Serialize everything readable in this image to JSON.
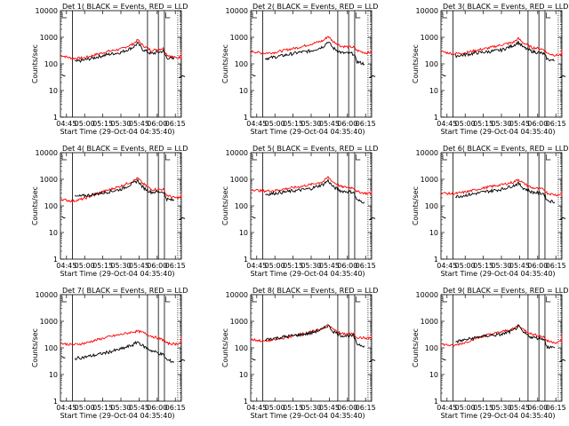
{
  "chart_data": {
    "type": "line",
    "panel_labels": [
      "Det 1( BLACK = Events, RED = LLD",
      "Det 2( BLACK = Events, RED = LLD",
      "Det 3( BLACK = Events, RED = LLD",
      "Det 4( BLACK = Events, RED = LLD",
      "Det 5( BLACK = Events, RED = LLD",
      "Det 6( BLACK = Events, RED = LLD",
      "Det 7( BLACK = Events, RED = LLD",
      "Det 8( BLACK = Events, RED = LLD",
      "Det 9( BLACK = Events, RED = LLD"
    ],
    "xlabel": "Start Time (29-Oct-04 04:35:40)",
    "ylabel": "Counts/sec",
    "x_ticks": [
      "04:45",
      "05:00",
      "05:15",
      "05:30",
      "05:45",
      "06:00",
      "06:15"
    ],
    "y_ticks": [
      "1",
      "10",
      "100",
      "1000",
      "10000"
    ],
    "y_scale": "log",
    "ylim": [
      1,
      10000
    ],
    "series_colors": {
      "events": "#000000",
      "lld": "#ff0000"
    },
    "panels": [
      {
        "lld": [
          [
            0,
            210
          ],
          [
            10,
            160
          ],
          [
            20,
            170
          ],
          [
            30,
            230
          ],
          [
            40,
            300
          ],
          [
            50,
            360
          ],
          [
            60,
            560
          ],
          [
            64,
            800
          ],
          [
            68,
            500
          ],
          [
            75,
            320
          ],
          [
            85,
            380
          ],
          [
            88,
            220
          ],
          [
            95,
            170
          ],
          [
            105,
            190
          ],
          [
            115,
            310
          ]
        ],
        "events": [
          [
            12,
            120
          ],
          [
            20,
            140
          ],
          [
            30,
            180
          ],
          [
            40,
            230
          ],
          [
            50,
            270
          ],
          [
            60,
            420
          ],
          [
            64,
            600
          ],
          [
            68,
            350
          ],
          [
            75,
            240
          ],
          [
            85,
            300
          ],
          [
            88,
            170
          ],
          [
            94,
            150
          ]
        ]
      },
      {
        "lld": [
          [
            0,
            300
          ],
          [
            10,
            250
          ],
          [
            20,
            270
          ],
          [
            30,
            340
          ],
          [
            40,
            420
          ],
          [
            50,
            560
          ],
          [
            60,
            750
          ],
          [
            64,
            1100
          ],
          [
            68,
            700
          ],
          [
            75,
            460
          ],
          [
            85,
            420
          ],
          [
            88,
            320
          ],
          [
            95,
            260
          ],
          [
            105,
            280
          ],
          [
            115,
            330
          ]
        ],
        "events": [
          [
            12,
            160
          ],
          [
            20,
            180
          ],
          [
            30,
            220
          ],
          [
            40,
            270
          ],
          [
            50,
            310
          ],
          [
            60,
            450
          ],
          [
            64,
            700
          ],
          [
            68,
            400
          ],
          [
            75,
            260
          ],
          [
            85,
            240
          ],
          [
            88,
            120
          ],
          [
            94,
            100
          ]
        ]
      },
      {
        "lld": [
          [
            0,
            290
          ],
          [
            10,
            240
          ],
          [
            20,
            260
          ],
          [
            30,
            330
          ],
          [
            40,
            400
          ],
          [
            50,
            520
          ],
          [
            60,
            650
          ],
          [
            64,
            900
          ],
          [
            68,
            620
          ],
          [
            75,
            420
          ],
          [
            85,
            350
          ],
          [
            88,
            250
          ],
          [
            95,
            210
          ],
          [
            105,
            240
          ],
          [
            115,
            330
          ]
        ],
        "events": [
          [
            12,
            200
          ],
          [
            20,
            220
          ],
          [
            30,
            260
          ],
          [
            40,
            290
          ],
          [
            50,
            330
          ],
          [
            60,
            500
          ],
          [
            64,
            650
          ],
          [
            68,
            420
          ],
          [
            75,
            300
          ],
          [
            85,
            240
          ],
          [
            88,
            150
          ],
          [
            94,
            130
          ]
        ]
      },
      {
        "lld": [
          [
            0,
            180
          ],
          [
            10,
            150
          ],
          [
            20,
            190
          ],
          [
            30,
            290
          ],
          [
            40,
            400
          ],
          [
            50,
            560
          ],
          [
            60,
            850
          ],
          [
            64,
            1100
          ],
          [
            68,
            700
          ],
          [
            75,
            420
          ],
          [
            85,
            420
          ],
          [
            88,
            250
          ],
          [
            95,
            200
          ],
          [
            105,
            220
          ],
          [
            115,
            310
          ]
        ],
        "events": [
          [
            12,
            220
          ],
          [
            20,
            240
          ],
          [
            30,
            280
          ],
          [
            40,
            340
          ],
          [
            50,
            420
          ],
          [
            60,
            700
          ],
          [
            64,
            900
          ],
          [
            68,
            500
          ],
          [
            75,
            330
          ],
          [
            85,
            340
          ],
          [
            88,
            180
          ],
          [
            94,
            160
          ]
        ]
      },
      {
        "lld": [
          [
            0,
            420
          ],
          [
            10,
            360
          ],
          [
            20,
            380
          ],
          [
            30,
            450
          ],
          [
            40,
            520
          ],
          [
            50,
            640
          ],
          [
            60,
            820
          ],
          [
            64,
            1200
          ],
          [
            68,
            800
          ],
          [
            75,
            520
          ],
          [
            85,
            480
          ],
          [
            88,
            340
          ],
          [
            95,
            300
          ],
          [
            105,
            300
          ],
          [
            115,
            380
          ]
        ],
        "events": [
          [
            12,
            270
          ],
          [
            20,
            300
          ],
          [
            30,
            340
          ],
          [
            40,
            390
          ],
          [
            50,
            450
          ],
          [
            60,
            650
          ],
          [
            64,
            900
          ],
          [
            68,
            520
          ],
          [
            75,
            360
          ],
          [
            85,
            330
          ],
          [
            88,
            160
          ],
          [
            94,
            140
          ]
        ]
      },
      {
        "lld": [
          [
            0,
            310
          ],
          [
            10,
            280
          ],
          [
            20,
            330
          ],
          [
            30,
            420
          ],
          [
            40,
            520
          ],
          [
            50,
            620
          ],
          [
            60,
            780
          ],
          [
            64,
            1000
          ],
          [
            68,
            720
          ],
          [
            75,
            480
          ],
          [
            85,
            420
          ],
          [
            88,
            300
          ],
          [
            95,
            260
          ],
          [
            105,
            260
          ],
          [
            115,
            330
          ]
        ],
        "events": [
          [
            12,
            220
          ],
          [
            20,
            250
          ],
          [
            30,
            300
          ],
          [
            40,
            360
          ],
          [
            50,
            420
          ],
          [
            60,
            580
          ],
          [
            64,
            700
          ],
          [
            68,
            470
          ],
          [
            75,
            330
          ],
          [
            85,
            290
          ],
          [
            88,
            160
          ],
          [
            94,
            140
          ]
        ]
      },
      {
        "lld": [
          [
            0,
            150
          ],
          [
            10,
            130
          ],
          [
            20,
            150
          ],
          [
            30,
            200
          ],
          [
            40,
            260
          ],
          [
            50,
            320
          ],
          [
            60,
            400
          ],
          [
            64,
            420
          ],
          [
            68,
            380
          ],
          [
            75,
            280
          ],
          [
            85,
            200
          ],
          [
            88,
            150
          ],
          [
            95,
            140
          ],
          [
            105,
            180
          ],
          [
            115,
            290
          ]
        ],
        "events": [
          [
            12,
            40
          ],
          [
            20,
            45
          ],
          [
            30,
            55
          ],
          [
            40,
            70
          ],
          [
            50,
            90
          ],
          [
            60,
            130
          ],
          [
            64,
            170
          ],
          [
            68,
            120
          ],
          [
            75,
            80
          ],
          [
            85,
            55
          ],
          [
            88,
            35
          ],
          [
            94,
            30
          ]
        ]
      },
      {
        "lld": [
          [
            0,
            210
          ],
          [
            10,
            180
          ],
          [
            20,
            200
          ],
          [
            30,
            250
          ],
          [
            40,
            310
          ],
          [
            50,
            400
          ],
          [
            60,
            550
          ],
          [
            64,
            750
          ],
          [
            68,
            500
          ],
          [
            75,
            340
          ],
          [
            85,
            330
          ],
          [
            88,
            250
          ],
          [
            95,
            230
          ],
          [
            105,
            250
          ],
          [
            115,
            300
          ]
        ],
        "events": [
          [
            12,
            210
          ],
          [
            20,
            230
          ],
          [
            30,
            270
          ],
          [
            40,
            310
          ],
          [
            50,
            360
          ],
          [
            60,
            520
          ],
          [
            64,
            700
          ],
          [
            68,
            420
          ],
          [
            75,
            290
          ],
          [
            85,
            280
          ],
          [
            88,
            140
          ],
          [
            94,
            120
          ]
        ]
      },
      {
        "lld": [
          [
            0,
            140
          ],
          [
            10,
            120
          ],
          [
            20,
            160
          ],
          [
            30,
            240
          ],
          [
            40,
            320
          ],
          [
            50,
            400
          ],
          [
            60,
            520
          ],
          [
            64,
            700
          ],
          [
            68,
            500
          ],
          [
            75,
            330
          ],
          [
            85,
            260
          ],
          [
            88,
            180
          ],
          [
            95,
            160
          ],
          [
            105,
            200
          ],
          [
            115,
            310
          ]
        ],
        "events": [
          [
            12,
            170
          ],
          [
            20,
            200
          ],
          [
            30,
            250
          ],
          [
            40,
            290
          ],
          [
            50,
            320
          ],
          [
            60,
            450
          ],
          [
            64,
            650
          ],
          [
            68,
            380
          ],
          [
            75,
            250
          ],
          [
            85,
            220
          ],
          [
            88,
            110
          ],
          [
            94,
            100
          ]
        ]
      }
    ],
    "events_start_fragment": [
      [
        -3,
        40
      ],
      [
        -1,
        35
      ],
      [
        0,
        36
      ]
    ],
    "events_end_fragment": [
      [
        98,
        30
      ],
      [
        101,
        36
      ],
      [
        103,
        33
      ]
    ]
  }
}
